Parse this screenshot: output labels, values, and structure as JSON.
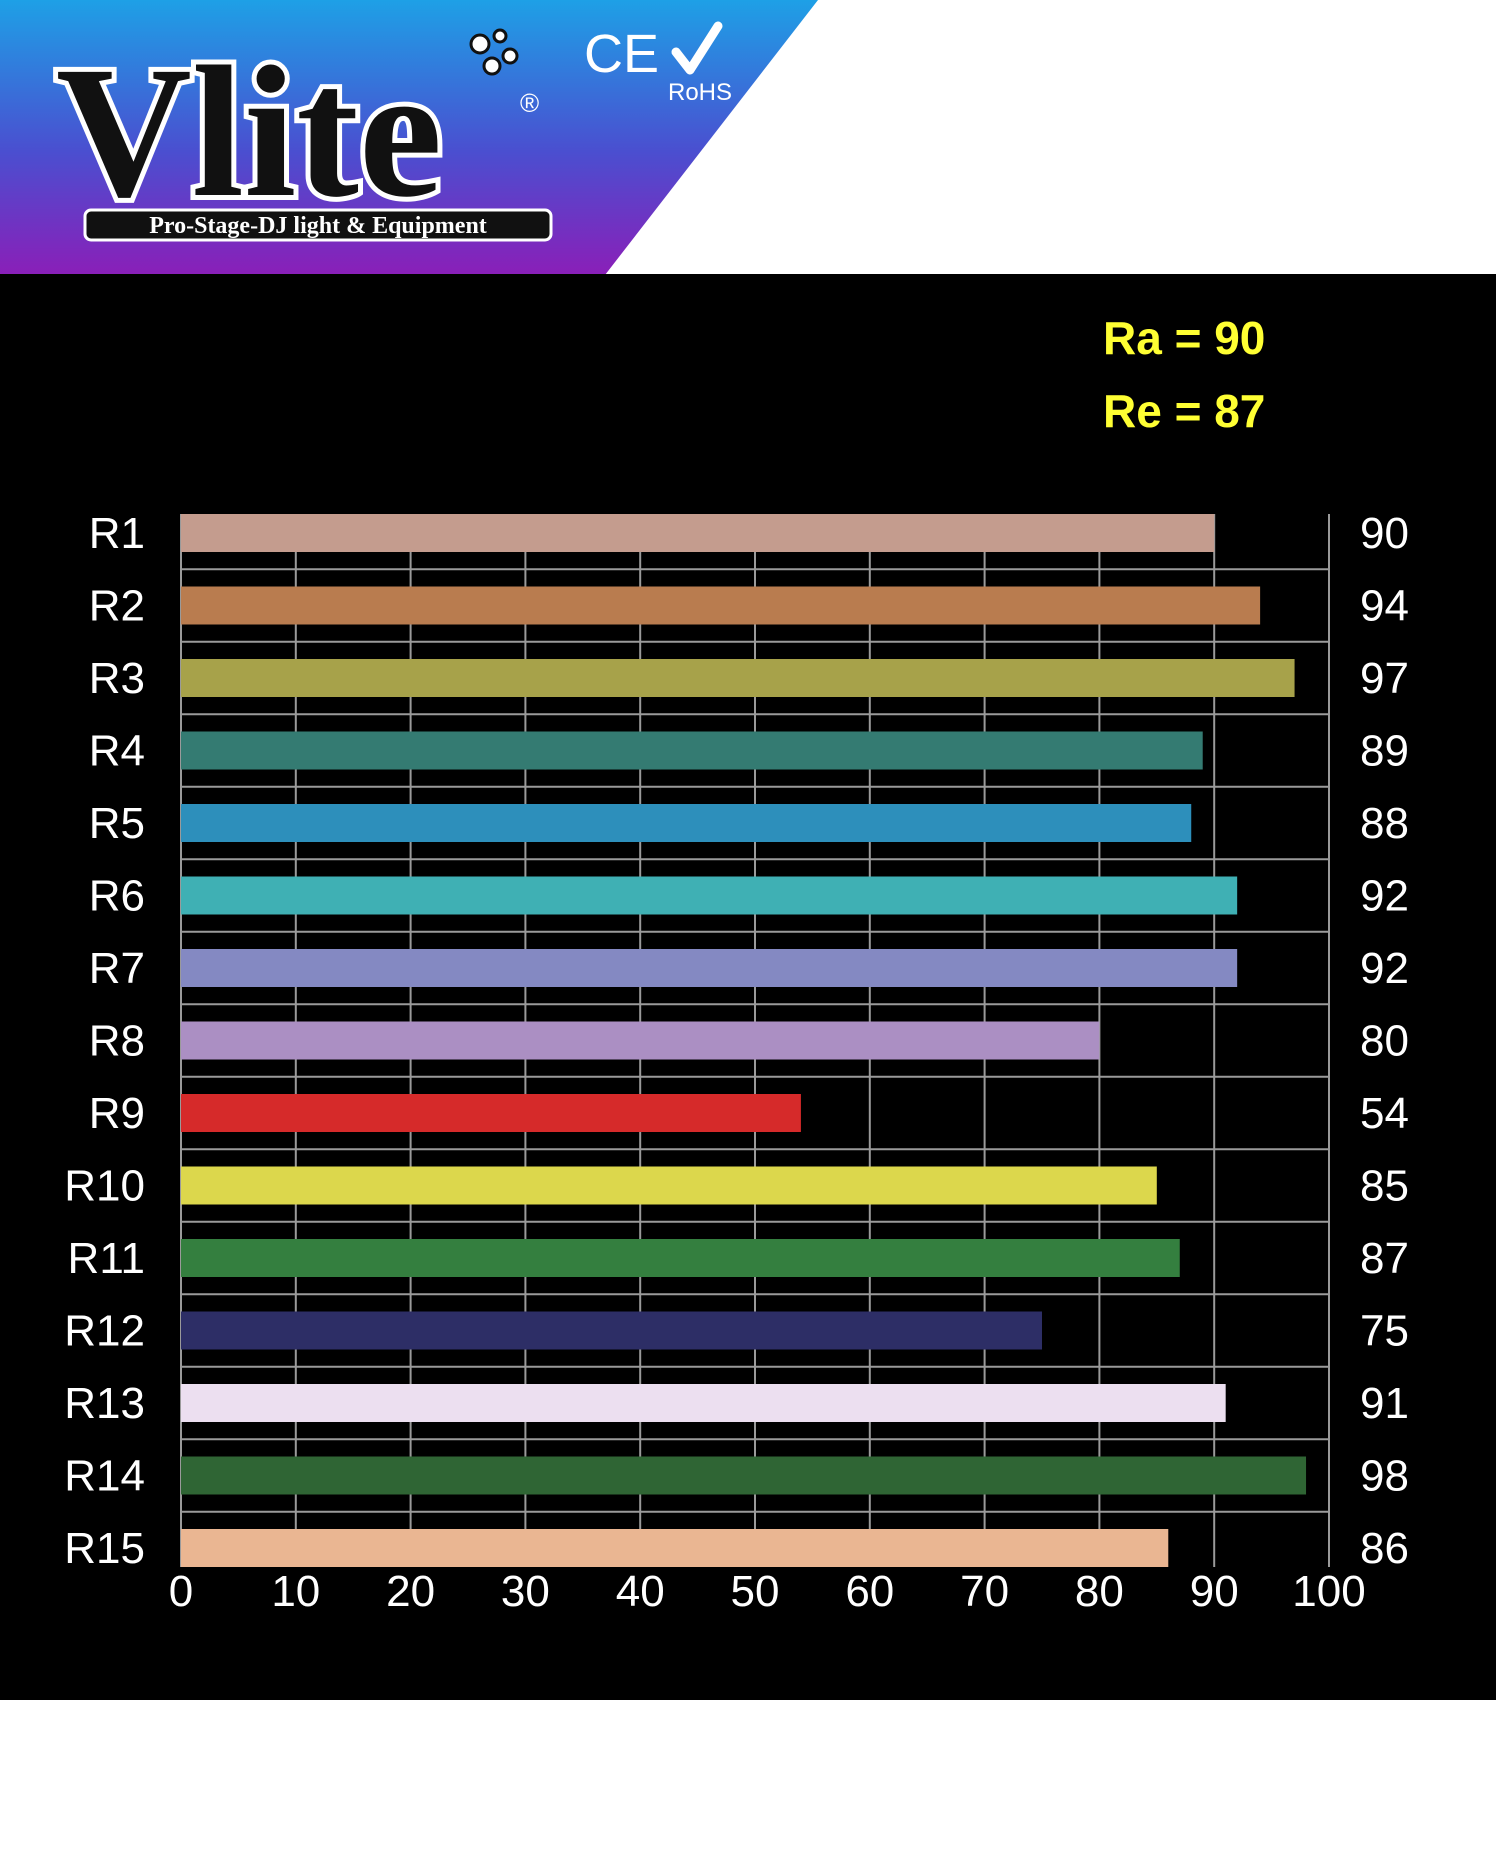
{
  "brand": {
    "name": "Vlite",
    "registered_mark": "®",
    "tagline": "Pro-Stage-DJ light & Equipment",
    "ce_mark": "CE",
    "rohs_mark": "RoHS",
    "colors": {
      "gradient_top": "#1ea0e6",
      "gradient_bottom": "#8a1fb8"
    }
  },
  "chart_data": {
    "type": "bar",
    "orientation": "horizontal",
    "annotations": [
      {
        "text": "Ra = 90",
        "color": "#ffff33"
      },
      {
        "text": "Re = 87",
        "color": "#ffff33"
      }
    ],
    "categories": [
      "R1",
      "R2",
      "R3",
      "R4",
      "R5",
      "R6",
      "R7",
      "R8",
      "R9",
      "R10",
      "R11",
      "R12",
      "R13",
      "R14",
      "R15"
    ],
    "values": [
      90,
      94,
      97,
      89,
      88,
      92,
      92,
      80,
      54,
      85,
      87,
      75,
      91,
      98,
      86
    ],
    "value_labels": [
      "90",
      "94",
      "97",
      "89",
      "88",
      "92",
      "92",
      "80",
      "54",
      "85",
      "87",
      "75",
      "91",
      "98",
      "86"
    ],
    "colors": [
      "#c49c8e",
      "#b97c4f",
      "#a7a24a",
      "#347b72",
      "#2d8fbb",
      "#3fb0b4",
      "#8489c2",
      "#ab8fc3",
      "#d62a2a",
      "#dcd74c",
      "#347f3f",
      "#2d2e66",
      "#ecdff0",
      "#2f6534",
      "#eab692"
    ],
    "xlim": [
      0,
      100
    ],
    "xticks": [
      0,
      10,
      20,
      30,
      40,
      50,
      60,
      70,
      80,
      90,
      100
    ],
    "grid": true,
    "background": "#000000"
  }
}
